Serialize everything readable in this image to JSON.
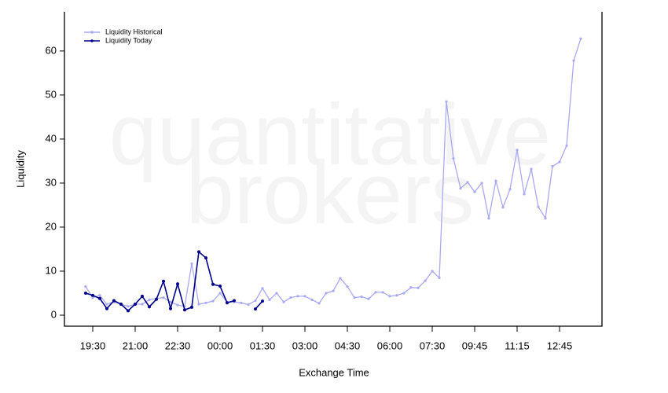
{
  "chart_data": {
    "type": "line",
    "watermark": [
      "quantitative",
      "brokers"
    ],
    "x_label": "Exchange Time",
    "y_label": "Liquidity",
    "categories": [
      null,
      "19:30",
      null,
      null,
      null,
      null,
      null,
      "21:00",
      null,
      null,
      null,
      null,
      null,
      "22:30",
      null,
      null,
      null,
      null,
      null,
      "00:00",
      null,
      null,
      null,
      null,
      null,
      "01:30",
      null,
      null,
      null,
      null,
      null,
      "03:00",
      null,
      null,
      null,
      null,
      null,
      "04:30",
      null,
      null,
      null,
      null,
      null,
      "06:00",
      null,
      null,
      null,
      null,
      null,
      "07:30",
      null,
      null,
      null,
      null,
      null,
      "09:45",
      null,
      null,
      null,
      null,
      null,
      "11:15",
      null,
      null,
      null,
      null,
      null,
      "12:45",
      null,
      null,
      null
    ],
    "series": [
      {
        "name": "Liquidity Historical",
        "color": "#a9a9f5",
        "values": [
          6.5,
          4.0,
          4.5,
          2.5,
          3.0,
          2.5,
          2.0,
          2.5,
          2.5,
          3.5,
          3.8,
          4.0,
          3.0,
          2.3,
          2.0,
          11.7,
          2.5,
          2.8,
          3.2,
          5.0,
          3.0,
          3.0,
          2.8,
          2.4,
          3.3,
          6.1,
          3.5,
          5.0,
          3.0,
          4.0,
          4.3,
          4.3,
          3.5,
          2.7,
          5.0,
          5.5,
          8.4,
          6.5,
          4.0,
          4.2,
          3.7,
          5.2,
          5.2,
          4.3,
          4.5,
          5.0,
          6.3,
          6.2,
          7.8,
          10.0,
          8.5,
          48.5,
          35.6,
          28.8,
          30.2,
          28.0,
          30.0,
          22.0,
          30.5,
          24.5,
          28.6,
          37.5,
          27.5,
          33.2,
          24.6,
          22.0,
          33.8,
          34.8,
          38.5,
          57.8,
          62.8
        ]
      },
      {
        "name": "Liquidity Today",
        "color": "#00008b",
        "values": [
          5.0,
          4.5,
          3.8,
          1.5,
          3.3,
          2.5,
          1.0,
          2.5,
          4.3,
          1.9,
          3.6,
          7.7,
          1.5,
          7.1,
          1.2,
          1.8,
          14.4,
          13.0,
          7.0,
          6.6,
          2.8,
          3.3,
          null,
          null,
          1.4,
          3.2,
          null,
          null,
          null,
          null,
          null,
          null,
          null,
          null,
          null,
          null,
          null,
          null,
          null,
          null,
          null,
          null,
          null,
          null,
          null,
          null,
          null,
          null,
          null,
          null,
          null,
          null,
          null,
          null,
          null,
          null,
          null,
          null,
          null,
          null,
          null,
          null,
          null,
          null,
          null,
          null,
          null,
          null,
          null,
          null,
          null
        ]
      }
    ],
    "ylim": [
      -2.5,
      68.9
    ],
    "yticks": [
      0,
      10,
      20,
      30,
      40,
      50,
      60
    ],
    "legend": "top-left"
  }
}
